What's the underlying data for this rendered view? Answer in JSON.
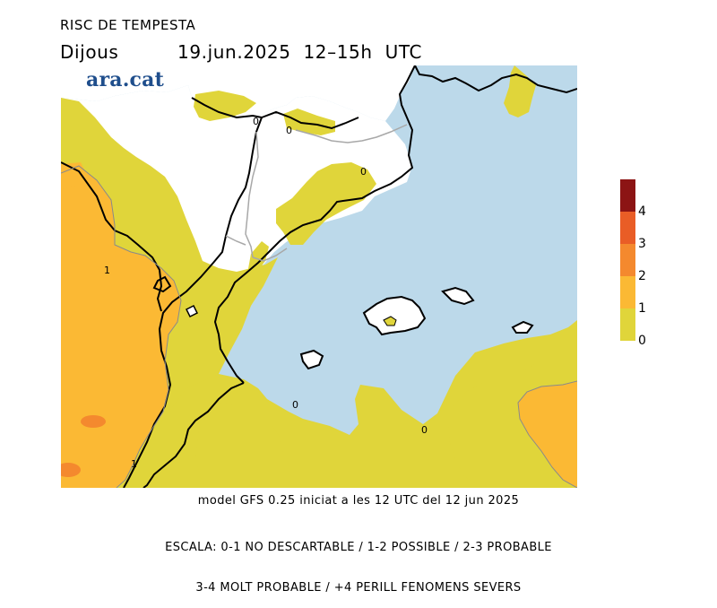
{
  "header": {
    "title": "RISC DE TEMPESTA",
    "day": "Dijous",
    "datetime": "19.jun.2025  12–15h  UTC"
  },
  "logo": {
    "text": "ara.cat"
  },
  "map": {
    "contour_labels": [
      "0",
      "0",
      "0",
      "1",
      "1",
      "0",
      "0"
    ],
    "colors": {
      "sea": "#bcd9ea",
      "land_outside_domain": "#ffffff",
      "level_0_1": "#e0d53a",
      "level_1_2": "#fbb934",
      "level_2_3": "#f4892e",
      "level_3_4": "#e95d26",
      "level_4_plus": "#8c1414",
      "coastline": "#000000",
      "border": "#a8a8a8"
    }
  },
  "legend": {
    "levels": [
      {
        "tick": "4",
        "color": "#8c1414"
      },
      {
        "tick": "3",
        "color": "#e95d26"
      },
      {
        "tick": "2",
        "color": "#f4892e"
      },
      {
        "tick": "1",
        "color": "#fbb934"
      },
      {
        "tick": "0",
        "color": "#e0d53a"
      }
    ]
  },
  "footer": {
    "model_line": "model GFS 0.25 iniciat a les 12 UTC del 12 jun 2025",
    "scale_line1": "ESCALA: 0-1 NO DESCARTABLE / 1-2 POSSIBLE / 2-3 PROBABLE",
    "scale_line2": "3-4 MOLT PROBABLE / +4 PERILL FENOMENS SEVERS"
  }
}
